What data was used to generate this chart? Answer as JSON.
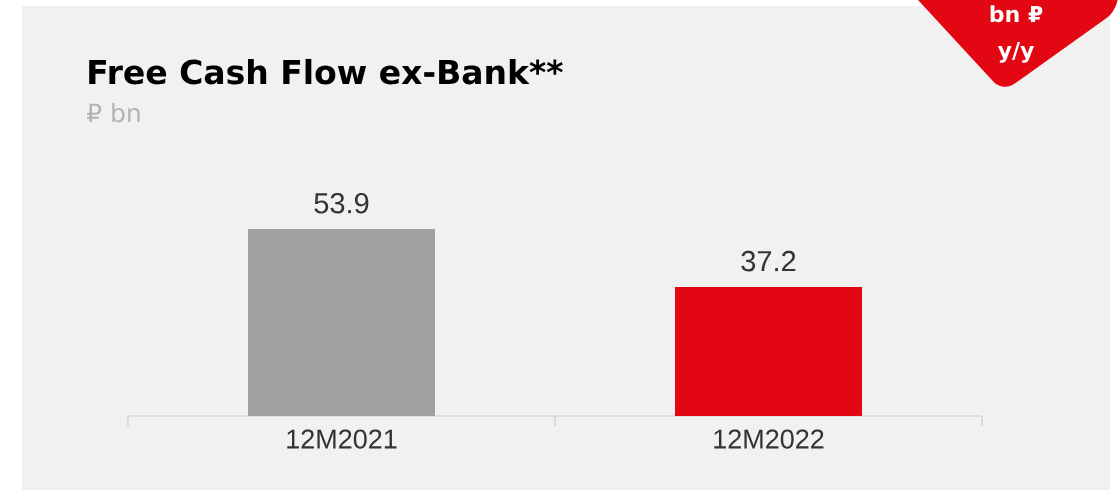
{
  "chart_data": {
    "type": "bar",
    "title": "Free Cash Flow ex-Bank**",
    "subtitle": "₽ bn",
    "categories": [
      "12M2021",
      "12M2022"
    ],
    "values": [
      53.9,
      37.2
    ],
    "colors": [
      "#a0a0a0",
      "#e30613"
    ],
    "data_labels": true,
    "annotations": [
      "bn ₽",
      "y/y"
    ]
  }
}
